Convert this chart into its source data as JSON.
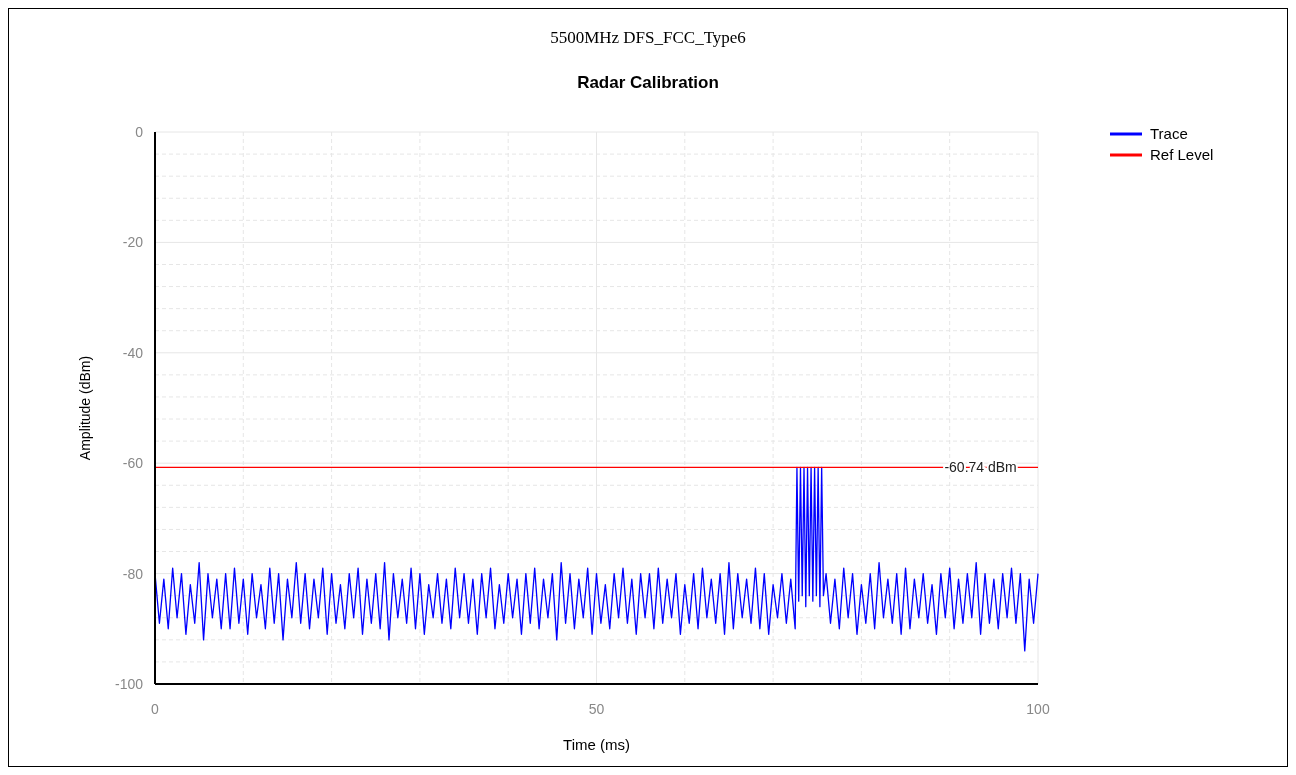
{
  "chart_data": {
    "type": "line",
    "title": "5500MHz DFS_FCC_Type6",
    "subtitle": "Radar Calibration",
    "xlabel": "Time (ms)",
    "ylabel": "Amplitude (dBm)",
    "xlim": [
      0,
      100
    ],
    "ylim": [
      -100,
      0
    ],
    "xticks": [
      0,
      {
        "value": 10,
        "label": null
      },
      {
        "value": 20,
        "label": null
      },
      {
        "value": 30,
        "label": null
      },
      {
        "value": 40,
        "label": null
      },
      50,
      {
        "value": 60,
        "label": null
      },
      {
        "value": 70,
        "label": null
      },
      {
        "value": 80,
        "label": null
      },
      {
        "value": 90,
        "label": null
      },
      100
    ],
    "yticks": [
      -100,
      {
        "value": -96,
        "label": null
      },
      {
        "value": -92,
        "label": null
      },
      {
        "value": -88,
        "label": null
      },
      {
        "value": -84,
        "label": null
      },
      -80,
      {
        "value": -76,
        "label": null
      },
      {
        "value": -72,
        "label": null
      },
      {
        "value": -68,
        "label": null
      },
      {
        "value": -64,
        "label": null
      },
      -60,
      {
        "value": -56,
        "label": null
      },
      {
        "value": -52,
        "label": null
      },
      {
        "value": -48,
        "label": null
      },
      {
        "value": -44,
        "label": null
      },
      -40,
      {
        "value": -36,
        "label": null
      },
      {
        "value": -32,
        "label": null
      },
      {
        "value": -28,
        "label": null
      },
      {
        "value": -24,
        "label": null
      },
      -20,
      {
        "value": -16,
        "label": null
      },
      {
        "value": -12,
        "label": null
      },
      {
        "value": -8,
        "label": null
      },
      {
        "value": -4,
        "label": null
      },
      0
    ],
    "grid": true,
    "legend": "top right",
    "marker": "none",
    "line_style": "solid",
    "annotations": [
      {
        "text": "-60.74 dBm",
        "x": 93.5,
        "y": -60.74
      }
    ],
    "series": [
      {
        "name": "Trace",
        "color": "#0000ff",
        "x": [
          0,
          0.5,
          1,
          1.5,
          2,
          2.5,
          3,
          3.5,
          4,
          4.5,
          5,
          5.5,
          6,
          6.5,
          7,
          7.5,
          8,
          8.5,
          9,
          9.5,
          10,
          10.5,
          11,
          11.5,
          12,
          12.5,
          13,
          13.5,
          14,
          14.5,
          15,
          15.5,
          16,
          16.5,
          17,
          17.5,
          18,
          18.5,
          19,
          19.5,
          20,
          20.5,
          21,
          21.5,
          22,
          22.5,
          23,
          23.5,
          24,
          24.5,
          25,
          25.5,
          26,
          26.5,
          27,
          27.5,
          28,
          28.5,
          29,
          29.5,
          30,
          30.5,
          31,
          31.5,
          32,
          32.5,
          33,
          33.5,
          34,
          34.5,
          35,
          35.5,
          36,
          36.5,
          37,
          37.5,
          38,
          38.5,
          39,
          39.5,
          40,
          40.5,
          41,
          41.5,
          42,
          42.5,
          43,
          43.5,
          44,
          44.5,
          45,
          45.5,
          46,
          46.5,
          47,
          47.5,
          48,
          48.5,
          49,
          49.5,
          50,
          50.5,
          51,
          51.5,
          52,
          52.5,
          53,
          53.5,
          54,
          54.5,
          55,
          55.5,
          56,
          56.5,
          57,
          57.5,
          58,
          58.5,
          59,
          59.5,
          60,
          60.5,
          61,
          61.5,
          62,
          62.5,
          63,
          63.5,
          64,
          64.5,
          65,
          65.5,
          66,
          66.5,
          67,
          67.5,
          68,
          68.5,
          69,
          69.5,
          70,
          70.5,
          71,
          71.5,
          72,
          72.5,
          72.7,
          72.9,
          73.1,
          73.3,
          73.5,
          73.7,
          73.9,
          74.1,
          74.3,
          74.5,
          74.7,
          74.9,
          75.1,
          75.3,
          75.5,
          75.7,
          76,
          76.5,
          77,
          77.5,
          78,
          78.5,
          79,
          79.5,
          80,
          80.5,
          81,
          81.5,
          82,
          82.5,
          83,
          83.5,
          84,
          84.5,
          85,
          85.5,
          86,
          86.5,
          87,
          87.5,
          88,
          88.5,
          89,
          89.5,
          90,
          90.5,
          91,
          91.5,
          92,
          92.5,
          93,
          93.5,
          94,
          94.5,
          95,
          95.5,
          96,
          96.5,
          97,
          97.5,
          98,
          98.5,
          99,
          99.5,
          100
        ],
        "values": [
          -80,
          -89,
          -81,
          -90,
          -79,
          -88,
          -80,
          -91,
          -82,
          -89,
          -78,
          -92,
          -80,
          -88,
          -81,
          -90,
          -80,
          -90,
          -79,
          -89,
          -81,
          -91,
          -80,
          -88,
          -82,
          -90,
          -79,
          -89,
          -80,
          -92,
          -81,
          -88,
          -78,
          -89,
          -80,
          -90,
          -81,
          -88,
          -79,
          -91,
          -80,
          -89,
          -82,
          -90,
          -80,
          -88,
          -79,
          -91,
          -81,
          -89,
          -80,
          -90,
          -78,
          -92,
          -80,
          -88,
          -81,
          -89,
          -79,
          -90,
          -80,
          -91,
          -82,
          -88,
          -80,
          -89,
          -81,
          -90,
          -79,
          -88,
          -80,
          -89,
          -81,
          -91,
          -80,
          -88,
          -79,
          -90,
          -82,
          -89,
          -80,
          -88,
          -81,
          -91,
          -80,
          -89,
          -79,
          -90,
          -81,
          -88,
          -80,
          -92,
          -78,
          -89,
          -80,
          -90,
          -81,
          -88,
          -79,
          -91,
          -80,
          -89,
          -82,
          -90,
          -80,
          -88,
          -79,
          -89,
          -81,
          -91,
          -80,
          -88,
          -80,
          -90,
          -79,
          -89,
          -81,
          -88,
          -80,
          -91,
          -82,
          -89,
          -80,
          -90,
          -79,
          -88,
          -81,
          -89,
          -80,
          -91,
          -78,
          -90,
          -80,
          -88,
          -81,
          -89,
          -79,
          -90,
          -80,
          -91,
          -82,
          -88,
          -80,
          -89,
          -81,
          -90,
          -60.74,
          -85,
          -60.74,
          -84,
          -60.74,
          -86,
          -60.74,
          -84,
          -60.74,
          -85,
          -60.74,
          -84,
          -60.74,
          -86,
          -60.74,
          -84,
          -80,
          -89,
          -81,
          -90,
          -79,
          -88,
          -80,
          -91,
          -82,
          -89,
          -80,
          -90,
          -78,
          -88,
          -81,
          -89,
          -80,
          -91,
          -79,
          -90,
          -81,
          -88,
          -80,
          -89,
          -82,
          -91,
          -80,
          -88,
          -79,
          -90,
          -81,
          -89,
          -80,
          -88,
          -78,
          -91,
          -80,
          -89,
          -81,
          -90,
          -80,
          -88,
          -79,
          -89,
          -80,
          -94,
          -81,
          -89,
          -80
        ]
      },
      {
        "name": "Ref Level",
        "color": "#ff0000",
        "x": [
          0,
          100
        ],
        "values": [
          -60.74,
          -60.74
        ]
      }
    ]
  }
}
